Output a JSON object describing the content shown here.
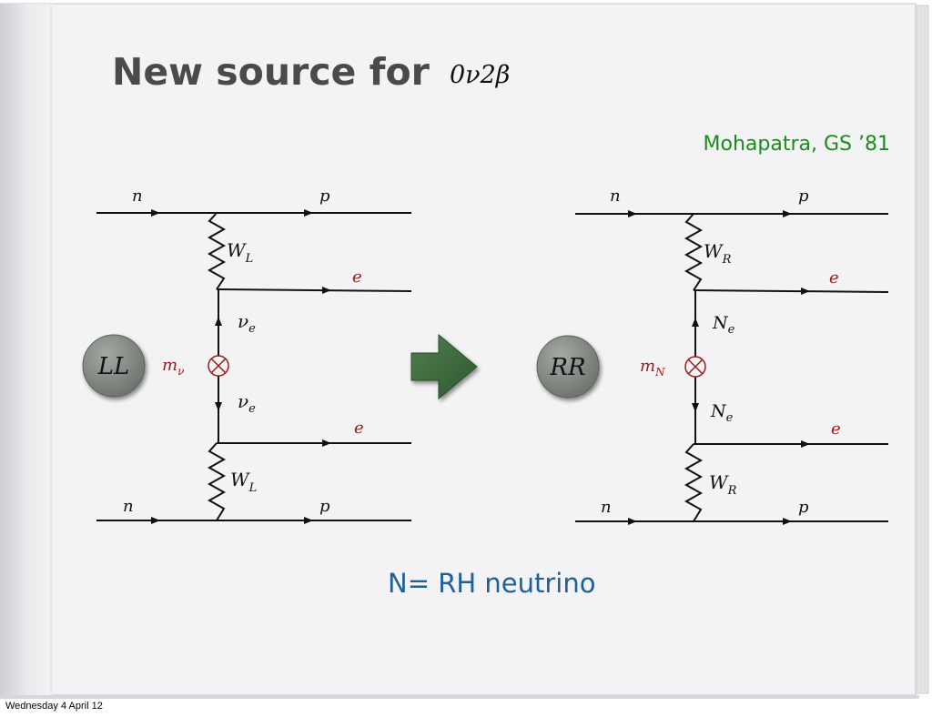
{
  "slide": {
    "title": "New source for",
    "title_math": "0ν2β",
    "citation": "Mohapatra, GS ’81",
    "caption": "N= RH neutrino",
    "footer": "Wednesday 4 April 12"
  },
  "colors": {
    "title": "#4a4a4a",
    "citation": "#1b8c1b",
    "caption": "#1f5f9a",
    "electron_label": "#9a1a1a",
    "mass_label": "#9a1a1a",
    "circle_fill": "#7b827b",
    "arrow_fill": "#3e6b3e",
    "page": "#f3f3f5"
  },
  "diagrams": {
    "left": {
      "model": "LL",
      "top_in": "n",
      "top_out": "p",
      "bottom_in": "n",
      "bottom_out": "p",
      "boson_top": "W",
      "boson_top_sub": "L",
      "boson_bottom": "W",
      "boson_bottom_sub": "L",
      "electron_top": "e",
      "electron_bottom": "e",
      "neutrino": "ν",
      "neutrino_sub": "e",
      "mass": "m",
      "mass_sub": "ν"
    },
    "right": {
      "model": "RR",
      "top_in": "n",
      "top_out": "p",
      "bottom_in": "n",
      "bottom_out": "p",
      "boson_top": "W",
      "boson_top_sub": "R",
      "boson_bottom": "W",
      "boson_bottom_sub": "R",
      "electron_top": "e",
      "electron_bottom": "e",
      "neutrino": "N",
      "neutrino_sub": "e",
      "mass": "m",
      "mass_sub": "N"
    }
  },
  "icons": {
    "transition_arrow": "right-arrow-icon",
    "mass_insertion": "circled-cross-icon"
  }
}
